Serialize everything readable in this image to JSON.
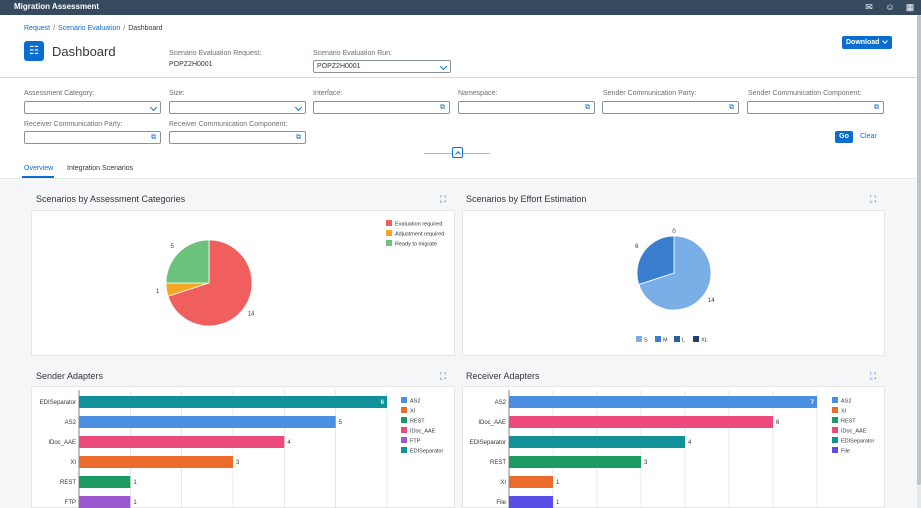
{
  "shell": {
    "title": "Migration Assessment",
    "icons": [
      "notifications-icon",
      "user-icon",
      "apps-grid-icon"
    ]
  },
  "header": {
    "breadcrumbs": [
      "Request",
      "Scenario Evaluation",
      "Dashboard"
    ],
    "title": "Dashboard",
    "request_label": "Scenario Evaluation Request:",
    "request_value": "POPZ2H0001",
    "run_label": "Scenario Evaluation Run:",
    "run_value": "POPZ2H0001",
    "download_label": "Download"
  },
  "filters": {
    "assessment_category": "Assessment Category:",
    "size": "Size:",
    "interface": "Interface:",
    "namespace": "Namespace:",
    "sender_party": "Sender Communication Party:",
    "sender_component": "Sender Communication Component:",
    "receiver_party": "Receiver Communication Party:",
    "receiver_component": "Receiver Communication Component:",
    "go_label": "Go",
    "clear_label": "Clear"
  },
  "tabs": [
    "Overview",
    "Integration Scenarios"
  ],
  "colors": {
    "accent": "#0a6ed1",
    "shell": "#354a5f"
  },
  "chart_data": [
    {
      "type": "pie",
      "title": "Scenarios by Assessment Categories",
      "labels": [
        "Evaluation required",
        "Adjustment required",
        "Ready to migrate"
      ],
      "values": [
        14,
        1,
        5
      ],
      "colors": [
        "#f15e5e",
        "#f5a623",
        "#6ac27b"
      ],
      "legend": "top-right"
    },
    {
      "type": "pie",
      "title": "Scenarios by Effort Estimation",
      "labels": [
        "S",
        "M",
        "L",
        "XL"
      ],
      "values": [
        14,
        6,
        0,
        0
      ],
      "colors": [
        "#7aaee6",
        "#3a7fcf",
        "#2c5f9e",
        "#1d3f73"
      ],
      "legend": "bottom"
    },
    {
      "type": "bar",
      "title": "Sender Adapters",
      "categories": [
        "EDISeparator",
        "AS2",
        "IDoc_AAE",
        "XI",
        "REST",
        "FTP"
      ],
      "values": [
        6,
        5,
        4,
        3,
        1,
        1
      ],
      "colors": [
        "#13919a",
        "#4a8fe2",
        "#ec4a7a",
        "#ec6a2c",
        "#1c9a62",
        "#9b59d0"
      ],
      "legend_labels": [
        "AS2",
        "XI",
        "REST",
        "IDoc_AAE",
        "FTP",
        "EDISeparator"
      ],
      "legend_colors": [
        "#4a8fe2",
        "#ec6a2c",
        "#1c9a62",
        "#ec4a7a",
        "#9b59d0",
        "#13919a"
      ],
      "xlim": [
        0,
        6
      ],
      "legend": "right"
    },
    {
      "type": "bar",
      "title": "Receiver Adapters",
      "categories": [
        "AS2",
        "IDoc_AAE",
        "EDISeparator",
        "REST",
        "XI",
        "File"
      ],
      "values": [
        7,
        6,
        4,
        3,
        1,
        1
      ],
      "colors": [
        "#4a8fe2",
        "#ec4a7a",
        "#13919a",
        "#1c9a62",
        "#ec6a2c",
        "#5a4ee8"
      ],
      "legend_labels": [
        "AS2",
        "XI",
        "REST",
        "IDoc_AAE",
        "EDISeparator",
        "File"
      ],
      "legend_colors": [
        "#4a8fe2",
        "#ec6a2c",
        "#1c9a62",
        "#ec4a7a",
        "#13919a",
        "#5a4ee8"
      ],
      "xlim": [
        0,
        7
      ],
      "legend": "right"
    }
  ]
}
